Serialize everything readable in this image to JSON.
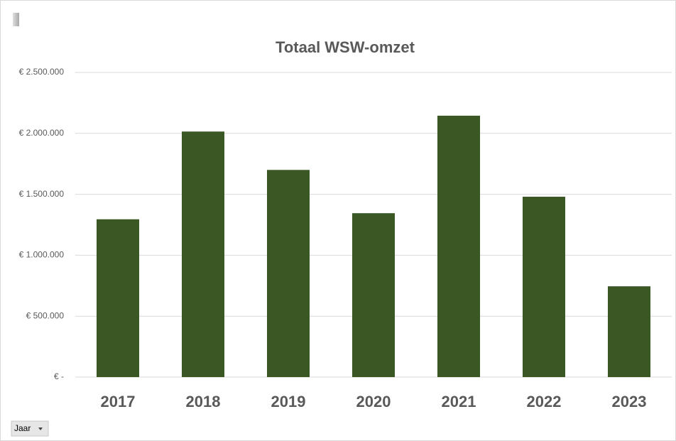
{
  "chart_data": {
    "type": "bar",
    "title": "Totaal WSW-omzet",
    "categories": [
      "2017",
      "2018",
      "2019",
      "2020",
      "2021",
      "2022",
      "2023"
    ],
    "values": [
      1295000,
      2015000,
      1700000,
      1345000,
      2145000,
      1480000,
      745000
    ],
    "color": "#3a5724",
    "ylim": [
      0,
      2500000
    ],
    "yticks": [
      {
        "value": 0,
        "label": "€ -"
      },
      {
        "value": 500000,
        "label": "€ 500.000"
      },
      {
        "value": 1000000,
        "label": "€ 1.000.000"
      },
      {
        "value": 1500000,
        "label": "€ 1.500.000"
      },
      {
        "value": 2000000,
        "label": "€ 2.000.000"
      },
      {
        "value": 2500000,
        "label": "€ 2.500.000"
      }
    ],
    "grid": true
  },
  "field_button": "Jaar"
}
